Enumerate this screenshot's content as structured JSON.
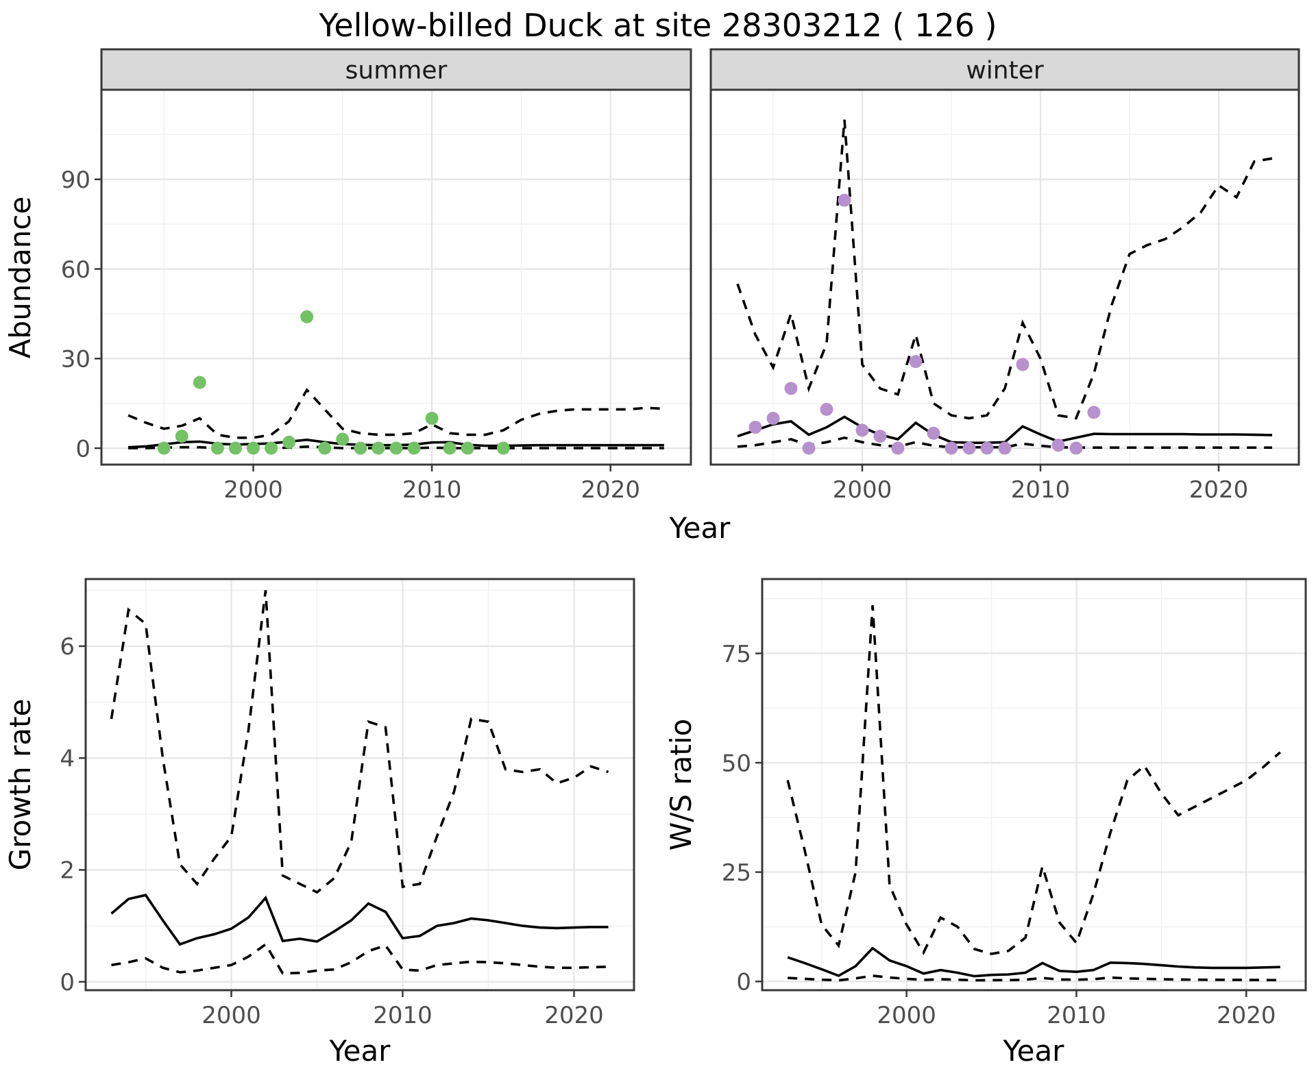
{
  "page": {
    "title": "Yellow-billed Duck at site 28303212 ( 126 )"
  },
  "colors": {
    "summer_point": "#73c266",
    "winter_point": "#b791cd",
    "line": "#000000",
    "strip_bg": "#d9d9d9",
    "strip_text": "#1a1a1a",
    "panel_border": "#383838",
    "grid_major": "#e5e5e5",
    "grid_minor": "#f0f0f0",
    "tick_label": "#4d4d4d",
    "axis_title": "#000000"
  },
  "chart_data": [
    {
      "id": "abundance-summer",
      "type": "line",
      "facet_label": "summer",
      "xlabel": "Year",
      "ylabel": "Abundance",
      "xlim": [
        1991.5,
        2024.5
      ],
      "ylim": [
        -5.5,
        120
      ],
      "x_ticks": [
        2000,
        2010,
        2020
      ],
      "y_ticks": [
        0,
        30,
        60,
        90
      ],
      "grid": true,
      "legend": "none",
      "series": {
        "upper": {
          "style": "dashed",
          "x_start": 1993,
          "values": [
            11,
            8.5,
            6.5,
            7.5,
            10,
            4.5,
            3.5,
            3.5,
            4.5,
            9,
            19.5,
            13,
            6.5,
            5,
            4.5,
            4.5,
            5,
            8,
            5,
            4.5,
            4.5,
            6,
            9.5,
            11.5,
            12.5,
            13,
            13,
            13,
            13,
            13.5,
            13.2
          ]
        },
        "median": {
          "style": "solid",
          "x_start": 1993,
          "values": [
            0.3,
            0.6,
            1.3,
            2.0,
            2.2,
            1.5,
            1.2,
            1.4,
            1.6,
            2.2,
            2.8,
            2.0,
            1.4,
            1.1,
            1.0,
            1.0,
            1.2,
            1.9,
            2.0,
            1.1,
            0.8,
            0.8,
            0.9,
            1.0,
            1.0,
            1.0,
            1.0,
            1.0,
            1.0,
            1.0,
            1.0
          ]
        },
        "lower": {
          "style": "dashed",
          "x_start": 1993,
          "values": [
            0,
            0,
            0.2,
            0.3,
            0.3,
            0,
            0,
            0,
            0,
            0.2,
            0.5,
            0.3,
            0,
            0,
            0,
            0,
            0,
            0.2,
            0,
            0,
            0,
            0,
            0,
            0,
            0,
            0,
            0,
            0,
            0,
            0,
            0
          ]
        },
        "observed": {
          "style": "points",
          "color_key": "summer_point",
          "points": [
            [
              1995,
              0
            ],
            [
              1996,
              4
            ],
            [
              1997,
              22
            ],
            [
              1998,
              0
            ],
            [
              1999,
              0
            ],
            [
              2000,
              0
            ],
            [
              2001,
              0
            ],
            [
              2002,
              2
            ],
            [
              2003,
              44
            ],
            [
              2004,
              0
            ],
            [
              2005,
              3
            ],
            [
              2006,
              0
            ],
            [
              2007,
              0
            ],
            [
              2008,
              0
            ],
            [
              2009,
              0
            ],
            [
              2010,
              10
            ],
            [
              2011,
              0
            ],
            [
              2012,
              0
            ],
            [
              2014,
              0
            ]
          ]
        }
      }
    },
    {
      "id": "abundance-winter",
      "type": "line",
      "facet_label": "winter",
      "xlabel": "Year",
      "ylabel": "Abundance",
      "xlim": [
        1991.5,
        2024.5
      ],
      "ylim": [
        -5.5,
        120
      ],
      "x_ticks": [
        2000,
        2010,
        2020
      ],
      "y_ticks": [
        0,
        30,
        60,
        90
      ],
      "grid": true,
      "legend": "none",
      "series": {
        "upper": {
          "style": "dashed",
          "x_start": 1993,
          "values": [
            55,
            38,
            27,
            45,
            20,
            35,
            110,
            28,
            20,
            18,
            38,
            15,
            11,
            10,
            11,
            20,
            42,
            30,
            11,
            10,
            25,
            48,
            65,
            68,
            70,
            74,
            79,
            88,
            84,
            96,
            97
          ]
        },
        "median": {
          "style": "solid",
          "x_start": 1993,
          "values": [
            4,
            6,
            8,
            9,
            4.5,
            7,
            10.5,
            7,
            4.5,
            3,
            8.5,
            4.5,
            2,
            1.8,
            1.8,
            2,
            7.3,
            4.6,
            2.2,
            3.5,
            4.8,
            4.7,
            4.7,
            4.7,
            4.7,
            4.7,
            4.6,
            4.6,
            4.6,
            4.5,
            4.4
          ]
        },
        "lower": {
          "style": "dashed",
          "x_start": 1993,
          "values": [
            0.5,
            1,
            2,
            3,
            1,
            2,
            3.5,
            2,
            1,
            0.5,
            2,
            0.8,
            0.3,
            0.3,
            0.3,
            0.3,
            1.5,
            0.8,
            0.3,
            0.2,
            0.2,
            0.2,
            0.2,
            0.2,
            0.2,
            0.2,
            0.2,
            0.2,
            0.2,
            0.2,
            0.2
          ]
        },
        "observed": {
          "style": "points",
          "color_key": "winter_point",
          "points": [
            [
              1994,
              7
            ],
            [
              1995,
              10
            ],
            [
              1996,
              20
            ],
            [
              1997,
              0
            ],
            [
              1998,
              13
            ],
            [
              1999,
              83
            ],
            [
              2000,
              6
            ],
            [
              2001,
              4
            ],
            [
              2002,
              0
            ],
            [
              2003,
              29
            ],
            [
              2004,
              5
            ],
            [
              2005,
              0
            ],
            [
              2006,
              0
            ],
            [
              2007,
              0
            ],
            [
              2008,
              0
            ],
            [
              2009,
              28
            ],
            [
              2011,
              1
            ],
            [
              2012,
              0
            ],
            [
              2013,
              12
            ]
          ]
        }
      }
    },
    {
      "id": "growth-rate",
      "type": "line",
      "facet_label": null,
      "xlabel": "Year",
      "ylabel": "Growth rate",
      "xlim": [
        1991.5,
        2023.5
      ],
      "ylim": [
        -0.15,
        7.2
      ],
      "x_ticks": [
        2000,
        2010,
        2020
      ],
      "y_ticks": [
        0,
        2,
        4,
        6
      ],
      "grid": true,
      "legend": "none",
      "series": {
        "upper": {
          "style": "dashed",
          "x_start": 1993,
          "values": [
            4.7,
            6.65,
            6.4,
            4.0,
            2.1,
            1.75,
            2.2,
            2.6,
            4.5,
            7.0,
            1.9,
            1.75,
            1.6,
            1.85,
            2.5,
            4.65,
            4.55,
            1.7,
            1.75,
            2.6,
            3.4,
            4.7,
            4.65,
            3.8,
            3.75,
            3.8,
            3.55,
            3.65,
            3.85,
            3.75
          ]
        },
        "median": {
          "style": "solid",
          "x_start": 1993,
          "values": [
            1.22,
            1.48,
            1.55,
            1.1,
            0.67,
            0.78,
            0.85,
            0.95,
            1.15,
            1.5,
            0.73,
            0.77,
            0.72,
            0.9,
            1.1,
            1.4,
            1.25,
            0.78,
            0.82,
            1.0,
            1.05,
            1.13,
            1.1,
            1.05,
            1.0,
            0.97,
            0.96,
            0.97,
            0.98,
            0.98
          ]
        },
        "lower": {
          "style": "dashed",
          "x_start": 1993,
          "values": [
            0.3,
            0.35,
            0.42,
            0.25,
            0.17,
            0.2,
            0.25,
            0.3,
            0.45,
            0.67,
            0.15,
            0.16,
            0.2,
            0.22,
            0.35,
            0.55,
            0.65,
            0.22,
            0.2,
            0.3,
            0.33,
            0.36,
            0.35,
            0.33,
            0.3,
            0.27,
            0.25,
            0.25,
            0.26,
            0.27
          ]
        }
      }
    },
    {
      "id": "ws-ratio",
      "type": "line",
      "facet_label": null,
      "xlabel": "Year",
      "ylabel": "W/S ratio",
      "xlim": [
        1991.5,
        2023.5
      ],
      "ylim": [
        -2,
        92
      ],
      "x_ticks": [
        2000,
        2010,
        2020
      ],
      "y_ticks": [
        0,
        25,
        50,
        75
      ],
      "grid": true,
      "legend": "none",
      "series": {
        "upper": {
          "style": "dashed",
          "x_start": 1993,
          "values": [
            46,
            30,
            13,
            8.2,
            25,
            86,
            22,
            13,
            6.6,
            14.6,
            12.5,
            7.4,
            6.3,
            7.0,
            10,
            26.3,
            13.5,
            8.8,
            20,
            34,
            46,
            49.3,
            43,
            38,
            40,
            42,
            44,
            46,
            49,
            52.4
          ]
        },
        "median": {
          "style": "solid",
          "x_start": 1993,
          "values": [
            5.5,
            4.2,
            2.8,
            1.3,
            3.5,
            7.6,
            4.8,
            3.5,
            1.8,
            2.6,
            2.0,
            1.2,
            1.5,
            1.6,
            2.0,
            4.2,
            2.4,
            2.2,
            2.6,
            4.3,
            4.2,
            4.0,
            3.7,
            3.4,
            3.2,
            3.1,
            3.1,
            3.1,
            3.2,
            3.3
          ]
        },
        "lower": {
          "style": "dashed",
          "x_start": 1993,
          "values": [
            0.8,
            0.6,
            0.4,
            0.25,
            0.7,
            1.3,
            0.9,
            0.6,
            0.35,
            0.5,
            0.4,
            0.25,
            0.3,
            0.3,
            0.4,
            0.8,
            0.45,
            0.4,
            0.5,
            0.9,
            0.7,
            0.6,
            0.5,
            0.45,
            0.4,
            0.38,
            0.36,
            0.35,
            0.33,
            0.3
          ]
        }
      }
    }
  ]
}
